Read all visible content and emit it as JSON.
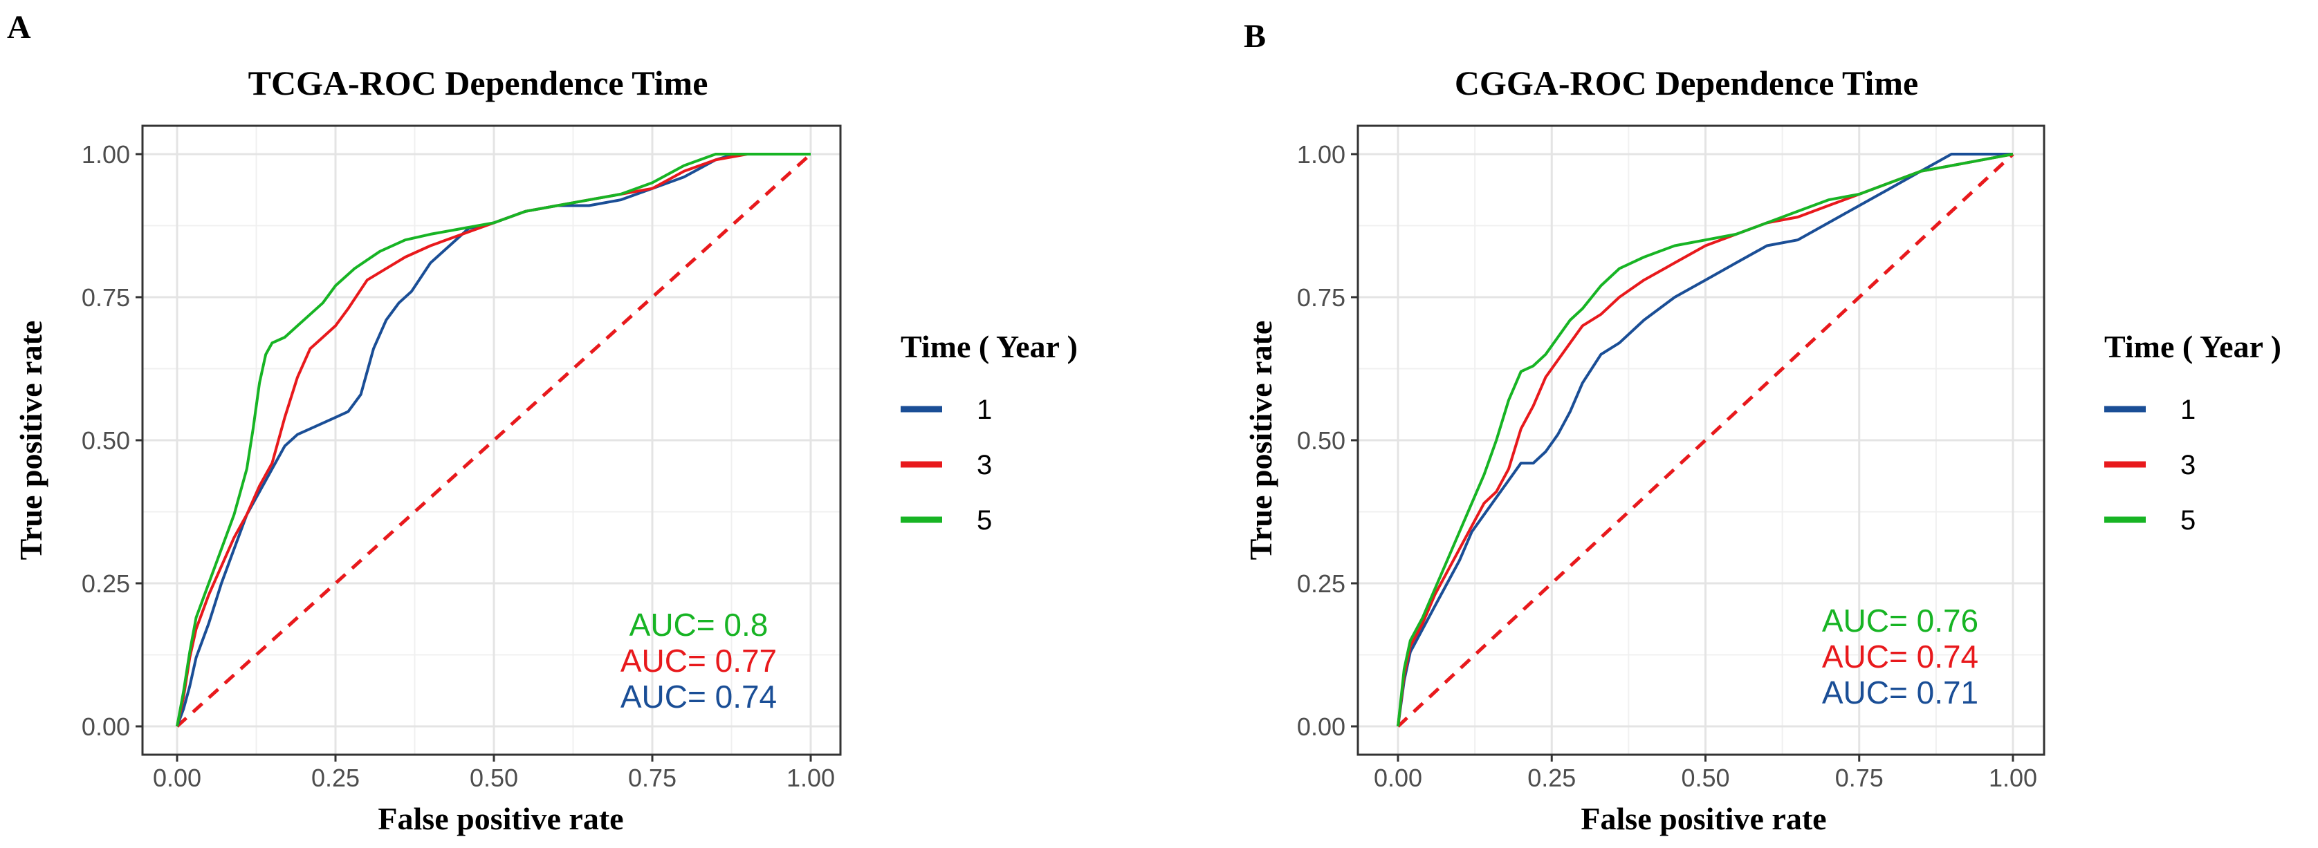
{
  "chart_data": [
    {
      "type": "line",
      "panel": "A",
      "title": "TCGA-ROC Dependence Time",
      "xlabel": "False positive rate",
      "ylabel": "True positive rate",
      "xlim": [
        0,
        1
      ],
      "ylim": [
        0,
        1
      ],
      "xticks": [
        "0.00",
        "0.25",
        "0.50",
        "0.75",
        "1.00"
      ],
      "yticks": [
        "0.00",
        "0.25",
        "0.50",
        "0.75",
        "1.00"
      ],
      "grid": true,
      "legend": {
        "title": "Time ( Year )",
        "position": "right"
      },
      "reference_line": {
        "from": [
          0,
          0
        ],
        "to": [
          1,
          1
        ],
        "color": "#e8191c",
        "style": "dashed"
      },
      "annotations": [
        {
          "prefix": "AUC=",
          "value": "0.8",
          "color": "#17b424"
        },
        {
          "prefix": "AUC=",
          "value": "0.77",
          "color": "#e8191c"
        },
        {
          "prefix": "AUC=",
          "value": "0.74",
          "color": "#1a4e96"
        }
      ],
      "series": [
        {
          "name": "1",
          "color": "#1a4e96",
          "x": [
            0,
            0.01,
            0.02,
            0.03,
            0.05,
            0.07,
            0.09,
            0.11,
            0.13,
            0.15,
            0.17,
            0.19,
            0.21,
            0.23,
            0.25,
            0.27,
            0.29,
            0.31,
            0.33,
            0.35,
            0.37,
            0.4,
            0.43,
            0.46,
            0.5,
            0.55,
            0.6,
            0.65,
            0.7,
            0.75,
            0.8,
            0.85,
            0.88,
            0.92,
            1.0
          ],
          "y": [
            0,
            0.03,
            0.07,
            0.12,
            0.18,
            0.25,
            0.31,
            0.37,
            0.41,
            0.45,
            0.49,
            0.51,
            0.52,
            0.53,
            0.54,
            0.55,
            0.58,
            0.66,
            0.71,
            0.74,
            0.76,
            0.81,
            0.84,
            0.87,
            0.88,
            0.9,
            0.91,
            0.91,
            0.92,
            0.94,
            0.96,
            0.99,
            1.0,
            1.0,
            1.0
          ]
        },
        {
          "name": "3",
          "color": "#e8191c",
          "x": [
            0,
            0.01,
            0.02,
            0.03,
            0.05,
            0.07,
            0.09,
            0.11,
            0.13,
            0.15,
            0.17,
            0.19,
            0.21,
            0.23,
            0.25,
            0.27,
            0.3,
            0.33,
            0.36,
            0.4,
            0.45,
            0.5,
            0.55,
            0.6,
            0.65,
            0.7,
            0.75,
            0.8,
            0.85,
            0.9,
            1.0
          ],
          "y": [
            0,
            0.05,
            0.12,
            0.17,
            0.23,
            0.28,
            0.33,
            0.37,
            0.42,
            0.46,
            0.54,
            0.61,
            0.66,
            0.68,
            0.7,
            0.73,
            0.78,
            0.8,
            0.82,
            0.84,
            0.86,
            0.88,
            0.9,
            0.91,
            0.92,
            0.93,
            0.94,
            0.97,
            0.99,
            1.0,
            1.0
          ]
        },
        {
          "name": "5",
          "color": "#17b424",
          "x": [
            0,
            0.01,
            0.02,
            0.03,
            0.05,
            0.07,
            0.09,
            0.11,
            0.12,
            0.13,
            0.14,
            0.15,
            0.17,
            0.19,
            0.21,
            0.23,
            0.25,
            0.28,
            0.32,
            0.36,
            0.4,
            0.45,
            0.5,
            0.55,
            0.6,
            0.65,
            0.7,
            0.75,
            0.8,
            0.85,
            0.9,
            1.0
          ],
          "y": [
            0,
            0.06,
            0.13,
            0.19,
            0.25,
            0.31,
            0.37,
            0.45,
            0.52,
            0.6,
            0.65,
            0.67,
            0.68,
            0.7,
            0.72,
            0.74,
            0.77,
            0.8,
            0.83,
            0.85,
            0.86,
            0.87,
            0.88,
            0.9,
            0.91,
            0.92,
            0.93,
            0.95,
            0.98,
            1.0,
            1.0,
            1.0
          ]
        }
      ]
    },
    {
      "type": "line",
      "panel": "B",
      "title": "CGGA-ROC Dependence Time",
      "xlabel": "False positive rate",
      "ylabel": "True positive rate",
      "xlim": [
        0,
        1
      ],
      "ylim": [
        0,
        1
      ],
      "xticks": [
        "0.00",
        "0.25",
        "0.50",
        "0.75",
        "1.00"
      ],
      "yticks": [
        "0.00",
        "0.25",
        "0.50",
        "0.75",
        "1.00"
      ],
      "grid": true,
      "legend": {
        "title": "Time ( Year )",
        "position": "right"
      },
      "reference_line": {
        "from": [
          0,
          0
        ],
        "to": [
          1,
          1
        ],
        "color": "#e8191c",
        "style": "dashed"
      },
      "annotations": [
        {
          "prefix": "AUC=",
          "value": "0.76",
          "color": "#17b424"
        },
        {
          "prefix": "AUC=",
          "value": "0.74",
          "color": "#e8191c"
        },
        {
          "prefix": "AUC=",
          "value": "0.71",
          "color": "#1a4e96"
        }
      ],
      "series": [
        {
          "name": "1",
          "color": "#1a4e96",
          "x": [
            0,
            0.01,
            0.02,
            0.04,
            0.06,
            0.08,
            0.1,
            0.12,
            0.14,
            0.16,
            0.18,
            0.2,
            0.22,
            0.24,
            0.26,
            0.28,
            0.3,
            0.33,
            0.36,
            0.4,
            0.45,
            0.5,
            0.55,
            0.6,
            0.65,
            0.7,
            0.75,
            0.8,
            0.85,
            0.9,
            0.95,
            1.0
          ],
          "y": [
            0,
            0.08,
            0.13,
            0.17,
            0.21,
            0.25,
            0.29,
            0.34,
            0.37,
            0.4,
            0.43,
            0.46,
            0.46,
            0.48,
            0.51,
            0.55,
            0.6,
            0.65,
            0.67,
            0.71,
            0.75,
            0.78,
            0.81,
            0.84,
            0.85,
            0.88,
            0.91,
            0.94,
            0.97,
            1.0,
            1.0,
            1.0
          ]
        },
        {
          "name": "3",
          "color": "#e8191c",
          "x": [
            0,
            0.01,
            0.02,
            0.04,
            0.06,
            0.08,
            0.1,
            0.12,
            0.14,
            0.16,
            0.18,
            0.2,
            0.22,
            0.24,
            0.26,
            0.28,
            0.3,
            0.33,
            0.36,
            0.4,
            0.45,
            0.5,
            0.55,
            0.6,
            0.65,
            0.7,
            0.75,
            0.8,
            0.85,
            0.9,
            0.95,
            1.0
          ],
          "y": [
            0,
            0.09,
            0.14,
            0.18,
            0.23,
            0.27,
            0.31,
            0.35,
            0.39,
            0.41,
            0.45,
            0.52,
            0.56,
            0.61,
            0.64,
            0.67,
            0.7,
            0.72,
            0.75,
            0.78,
            0.81,
            0.84,
            0.86,
            0.88,
            0.89,
            0.91,
            0.93,
            0.95,
            0.97,
            0.98,
            0.99,
            1.0
          ]
        },
        {
          "name": "5",
          "color": "#17b424",
          "x": [
            0,
            0.01,
            0.02,
            0.04,
            0.06,
            0.08,
            0.1,
            0.12,
            0.14,
            0.16,
            0.18,
            0.2,
            0.22,
            0.24,
            0.26,
            0.28,
            0.3,
            0.33,
            0.36,
            0.4,
            0.45,
            0.5,
            0.55,
            0.6,
            0.65,
            0.7,
            0.75,
            0.8,
            0.85,
            0.9,
            0.95,
            1.0
          ],
          "y": [
            0,
            0.1,
            0.15,
            0.19,
            0.24,
            0.29,
            0.34,
            0.39,
            0.44,
            0.5,
            0.57,
            0.62,
            0.63,
            0.65,
            0.68,
            0.71,
            0.73,
            0.77,
            0.8,
            0.82,
            0.84,
            0.85,
            0.86,
            0.88,
            0.9,
            0.92,
            0.93,
            0.95,
            0.97,
            0.98,
            0.99,
            1.0
          ]
        }
      ]
    }
  ]
}
